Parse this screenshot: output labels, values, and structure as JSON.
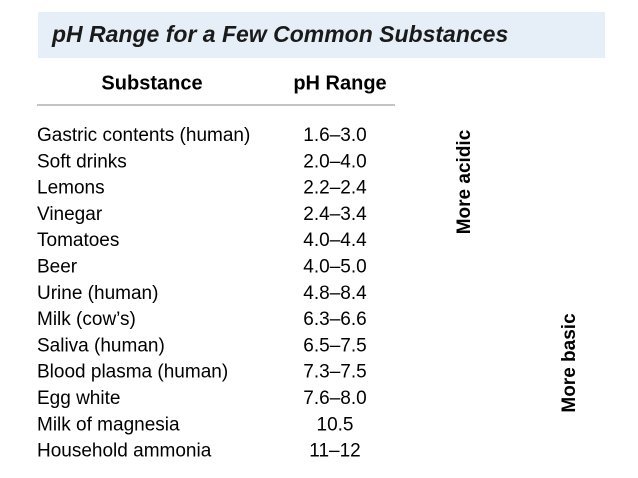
{
  "header": {
    "title": "pH Range for a Few Common Substances"
  },
  "table": {
    "columns": [
      "Substance",
      "pH Range"
    ],
    "rows": [
      [
        "Gastric contents (human)",
        "1.6–3.0"
      ],
      [
        "Soft drinks",
        "2.0–4.0"
      ],
      [
        "Lemons",
        "2.2–2.4"
      ],
      [
        "Vinegar",
        "2.4–3.4"
      ],
      [
        "Tomatoes",
        "4.0–4.4"
      ],
      [
        "Beer",
        "4.0–5.0"
      ],
      [
        "Urine (human)",
        "4.8–8.4"
      ],
      [
        "Milk (cow’s)",
        "6.3–6.6"
      ],
      [
        "Saliva (human)",
        "6.5–7.5"
      ],
      [
        "Blood plasma (human)",
        "7.3–7.5"
      ],
      [
        "Egg white",
        "7.6–8.0"
      ],
      [
        "Milk of magnesia",
        "10.5"
      ],
      [
        "Household ammonia",
        "11–12"
      ]
    ]
  },
  "side_labels": {
    "acidic": "More acidic",
    "basic": "More basic"
  }
}
